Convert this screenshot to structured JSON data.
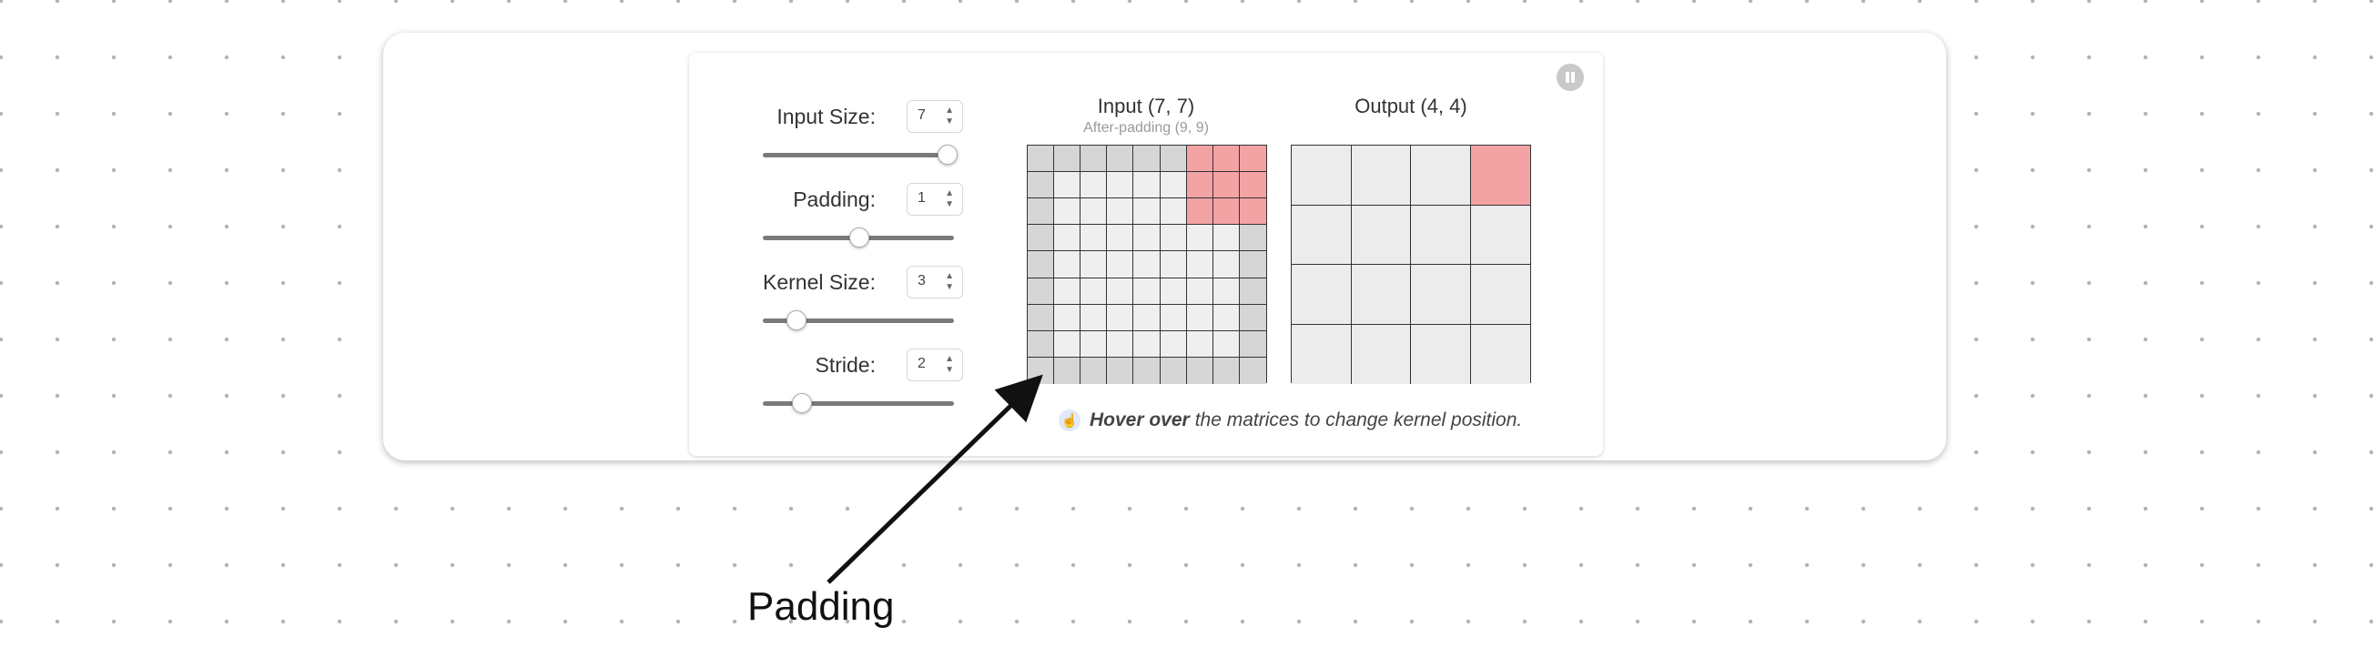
{
  "controls": [
    {
      "key": "input_size",
      "label": "Input Size:",
      "value": "7",
      "slider_fraction": 0.96
    },
    {
      "key": "padding",
      "label": "Padding:",
      "value": "1",
      "slider_fraction": 0.5
    },
    {
      "key": "kernel_size",
      "label": "Kernel Size:",
      "value": "3",
      "slider_fraction": 0.17
    },
    {
      "key": "stride",
      "label": "Stride:",
      "value": "2",
      "slider_fraction": 0.2
    }
  ],
  "input_matrix": {
    "title": "Input (7, 7)",
    "subtitle": "After-padding (9, 9)",
    "size": 9,
    "padding": 1,
    "kernel_rows": [
      0,
      2
    ],
    "kernel_cols": [
      6,
      8
    ]
  },
  "output_matrix": {
    "title": "Output (4, 4)",
    "size": 4,
    "highlight_row": 0,
    "highlight_col": 3
  },
  "hint": {
    "bold": "Hover over",
    "text": "the matrices to change kernel position."
  },
  "annotation_label": "Padding",
  "colors": {
    "padding_cell": "#d6d6d6",
    "input_cell": "#efefef",
    "kernel_cell": "#f4a3a5",
    "output_cell": "#ececec",
    "output_highlight": "#f4a3a5"
  },
  "icons": {
    "pause": "pause-icon",
    "hint": "hand-pointer-icon"
  }
}
